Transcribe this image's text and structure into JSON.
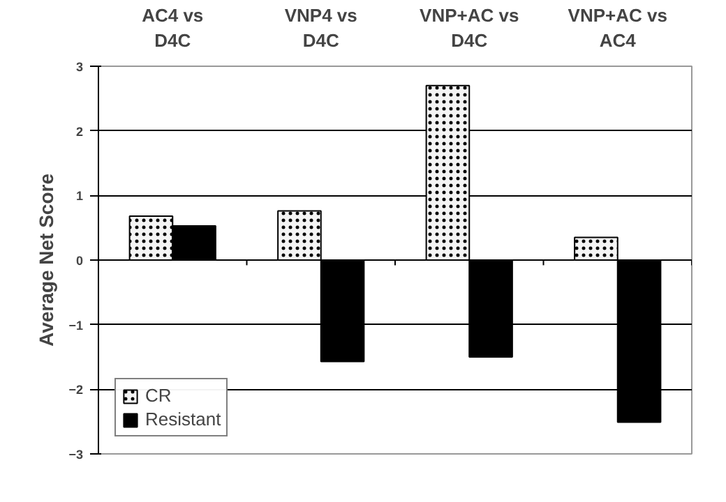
{
  "chart_data": {
    "type": "bar",
    "categories": [
      "AC4 vs D4C",
      "VNP4 vs D4C",
      "VNP+AC vs D4C",
      "VNP+AC vs AC4"
    ],
    "ylabel": "Average Net Score",
    "ylim": [
      -3,
      3
    ],
    "yticks": [
      -3,
      -2,
      -1,
      0,
      1,
      2,
      3
    ],
    "grid": "y",
    "legend": "bottom left",
    "series": [
      {
        "name": "CR",
        "color": "#f4f4f4",
        "values": [
          0.68,
          0.76,
          2.7,
          0.35
        ]
      },
      {
        "name": "Resistant",
        "color": "#000000",
        "values": [
          0.53,
          -1.57,
          -1.5,
          -2.51
        ]
      }
    ]
  }
}
